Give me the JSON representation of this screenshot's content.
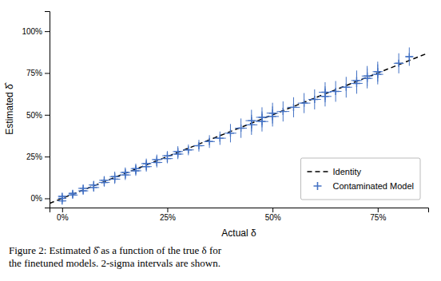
{
  "chart_data": {
    "type": "scatter",
    "xlabel": "Actual δ",
    "ylabel": "Estimated δ̂",
    "caption": [
      "Figure 2: Estimated δ̂ as a function of the true δ for",
      "the finetuned models. 2-sigma intervals are shown."
    ],
    "xlim": [
      -0.03,
      0.87
    ],
    "ylim": [
      -0.055,
      1.12
    ],
    "xticks": [
      {
        "value": 0.0,
        "label": "0%"
      },
      {
        "value": 0.25,
        "label": "25%"
      },
      {
        "value": 0.5,
        "label": "50%"
      },
      {
        "value": 0.75,
        "label": "75%"
      }
    ],
    "yticks": [
      {
        "value": 0.0,
        "label": "0%"
      },
      {
        "value": 0.25,
        "label": "25%"
      },
      {
        "value": 0.5,
        "label": "50%"
      },
      {
        "value": 0.75,
        "label": "75%"
      },
      {
        "value": 1.0,
        "label": "100%"
      }
    ],
    "grid": false,
    "legend": "lower right",
    "series": [
      {
        "name": "Identity",
        "type": "line",
        "line_style": "dashed",
        "color": "#000000",
        "x": [
          -0.03,
          0.87
        ],
        "values": [
          -0.03,
          0.87
        ]
      },
      {
        "name": "Contaminated Model",
        "type": "scatter",
        "marker": "plus",
        "color": "#4472c4",
        "x": [
          0.0,
          0.0,
          0.0,
          0.025,
          0.025,
          0.05,
          0.05,
          0.075,
          0.075,
          0.1,
          0.1,
          0.125,
          0.125,
          0.15,
          0.15,
          0.175,
          0.175,
          0.2,
          0.2,
          0.225,
          0.225,
          0.25,
          0.25,
          0.275,
          0.275,
          0.3,
          0.325,
          0.35,
          0.375,
          0.4,
          0.425,
          0.45,
          0.45,
          0.475,
          0.475,
          0.5,
          0.5,
          0.525,
          0.55,
          0.575,
          0.6,
          0.625,
          0.625,
          0.65,
          0.675,
          0.7,
          0.7,
          0.725,
          0.725,
          0.75,
          0.75,
          0.8,
          0.825
        ],
        "values": [
          -0.015,
          0.0,
          0.012,
          0.02,
          0.03,
          0.045,
          0.06,
          0.065,
          0.08,
          0.095,
          0.108,
          0.115,
          0.13,
          0.14,
          0.155,
          0.165,
          0.178,
          0.19,
          0.208,
          0.215,
          0.232,
          0.238,
          0.255,
          0.265,
          0.28,
          0.29,
          0.315,
          0.34,
          0.36,
          0.39,
          0.42,
          0.44,
          0.465,
          0.46,
          0.485,
          0.49,
          0.51,
          0.52,
          0.545,
          0.57,
          0.592,
          0.61,
          0.635,
          0.64,
          0.665,
          0.688,
          0.705,
          0.718,
          0.732,
          0.742,
          0.758,
          0.808,
          0.848
        ],
        "xerr": [
          0.01,
          0.01,
          0.01,
          0.012,
          0.01,
          0.012,
          0.012,
          0.013,
          0.012,
          0.013,
          0.012,
          0.013,
          0.012,
          0.013,
          0.012,
          0.013,
          0.012,
          0.013,
          0.012,
          0.013,
          0.012,
          0.013,
          0.012,
          0.013,
          0.012,
          0.013,
          0.013,
          0.013,
          0.014,
          0.014,
          0.014,
          0.014,
          0.014,
          0.015,
          0.014,
          0.015,
          0.014,
          0.015,
          0.015,
          0.015,
          0.015,
          0.015,
          0.015,
          0.014,
          0.014,
          0.014,
          0.013,
          0.013,
          0.013,
          0.013,
          0.012,
          0.012,
          0.01
        ],
        "yerr": [
          0.012,
          0.015,
          0.02,
          0.02,
          0.018,
          0.022,
          0.022,
          0.025,
          0.025,
          0.025,
          0.025,
          0.028,
          0.03,
          0.03,
          0.03,
          0.03,
          0.03,
          0.03,
          0.03,
          0.03,
          0.03,
          0.028,
          0.028,
          0.03,
          0.032,
          0.032,
          0.035,
          0.038,
          0.04,
          0.055,
          0.058,
          0.06,
          0.065,
          0.06,
          0.06,
          0.06,
          0.062,
          0.06,
          0.06,
          0.06,
          0.06,
          0.06,
          0.06,
          0.062,
          0.062,
          0.062,
          0.06,
          0.06,
          0.06,
          0.06,
          0.06,
          0.06,
          0.055
        ]
      }
    ]
  }
}
